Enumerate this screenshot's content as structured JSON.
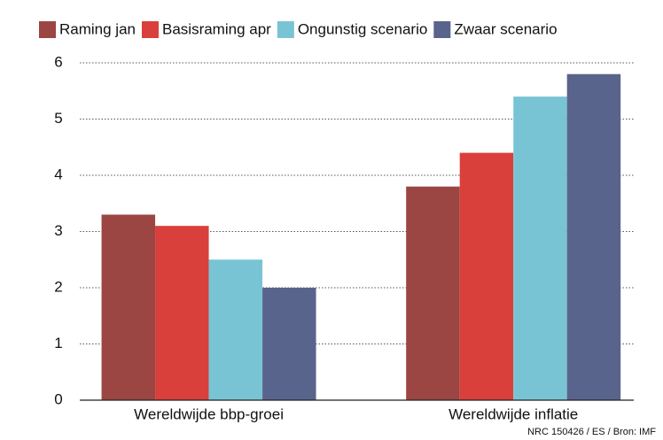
{
  "chart_data": {
    "type": "bar",
    "categories": [
      "Wereldwijde bbp-groei",
      "Wereldwijde inflatie"
    ],
    "series": [
      {
        "name": "Raming jan",
        "color": "#9b4642",
        "values": [
          3.3,
          3.8
        ]
      },
      {
        "name": "Basisraming apr",
        "color": "#d9403b",
        "values": [
          3.1,
          4.4
        ]
      },
      {
        "name": "Ongunstig scenario",
        "color": "#79c4d4",
        "values": [
          2.5,
          5.4
        ]
      },
      {
        "name": "Zwaar scenario",
        "color": "#59648c",
        "values": [
          2.0,
          5.8
        ]
      }
    ],
    "ylim": [
      0,
      6
    ],
    "yticks": [
      0,
      1,
      2,
      3,
      4,
      5,
      6
    ],
    "grid": true,
    "source": "NRC 150426 / ES / Bron: IMF"
  }
}
